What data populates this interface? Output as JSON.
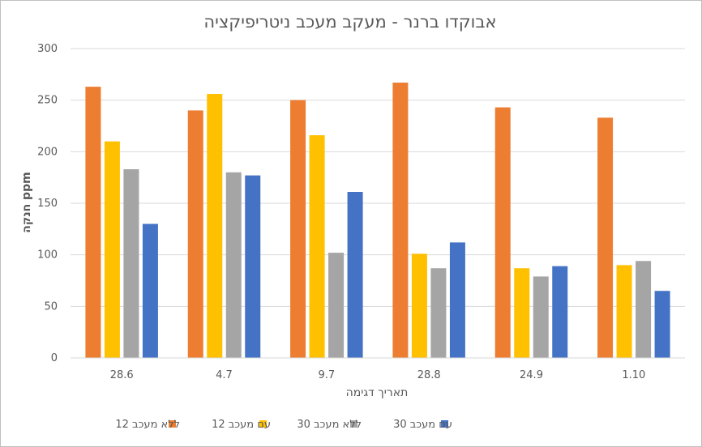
{
  "chart_data": {
    "type": "bar",
    "title": "אבוקדו ברנר - מעקב מעכב ניטריפיקציה",
    "xlabel": "תאריך דגימה",
    "ylabel": "חנקה ppm",
    "categories": [
      "28.6",
      "4.7",
      "9.7",
      "28.8",
      "24.9",
      "1.10"
    ],
    "ylim": [
      0,
      300
    ],
    "yticks": [
      0,
      50,
      100,
      150,
      200,
      250,
      300
    ],
    "grid": true,
    "legend_position": "bottom",
    "series": [
      {
        "name": "ללא מעכב 12",
        "color": "#ED7D31",
        "values": [
          263,
          240,
          250,
          267,
          243,
          233
        ]
      },
      {
        "name": "עם מעכב 12",
        "color": "#FFC000",
        "values": [
          210,
          256,
          216,
          101,
          87,
          90
        ]
      },
      {
        "name": "ללא מעכב 30",
        "color": "#A5A5A5",
        "values": [
          183,
          180,
          102,
          87,
          79,
          94
        ]
      },
      {
        "name": "עם מעכב 30",
        "color": "#4472C4",
        "values": [
          130,
          177,
          161,
          112,
          89,
          65
        ]
      }
    ]
  }
}
